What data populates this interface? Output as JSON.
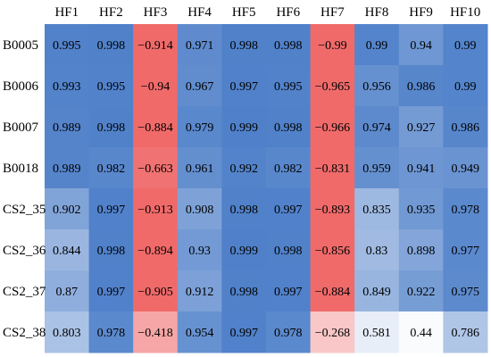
{
  "chart_data": {
    "type": "heatmap",
    "title": "",
    "xlabel": "",
    "ylabel": "",
    "columns": [
      "HF1",
      "HF2",
      "HF3",
      "HF4",
      "HF5",
      "HF6",
      "HF7",
      "HF8",
      "HF9",
      "HF10"
    ],
    "rows": [
      "B0005",
      "B0006",
      "B0007",
      "B0018",
      "CS2_35",
      "CS2_36",
      "CS2_37",
      "CS2_38"
    ],
    "values": [
      [
        0.995,
        0.998,
        -0.914,
        0.971,
        0.998,
        0.998,
        -0.99,
        0.99,
        0.94,
        0.99
      ],
      [
        0.993,
        0.995,
        -0.94,
        0.967,
        0.997,
        0.995,
        -0.965,
        0.956,
        0.986,
        0.99
      ],
      [
        0.989,
        0.998,
        -0.884,
        0.979,
        0.999,
        0.998,
        -0.966,
        0.974,
        0.927,
        0.986
      ],
      [
        0.989,
        0.982,
        -0.663,
        0.961,
        0.992,
        0.982,
        -0.831,
        0.959,
        0.941,
        0.949
      ],
      [
        0.902,
        0.997,
        -0.913,
        0.908,
        0.998,
        0.997,
        -0.893,
        0.835,
        0.935,
        0.978
      ],
      [
        0.844,
        0.998,
        -0.894,
        0.93,
        0.999,
        0.998,
        -0.856,
        0.83,
        0.898,
        0.977
      ],
      [
        0.87,
        0.997,
        -0.905,
        0.912,
        0.998,
        0.997,
        -0.884,
        0.849,
        0.922,
        0.975
      ],
      [
        0.803,
        0.978,
        -0.418,
        0.954,
        0.997,
        0.978,
        -0.268,
        0.581,
        0.44,
        0.786
      ]
    ],
    "colormap": {
      "negative": "#f06a6a",
      "positive": "#4f80c9",
      "neutral": "#ffffff"
    },
    "grid": false,
    "legend": "none"
  }
}
